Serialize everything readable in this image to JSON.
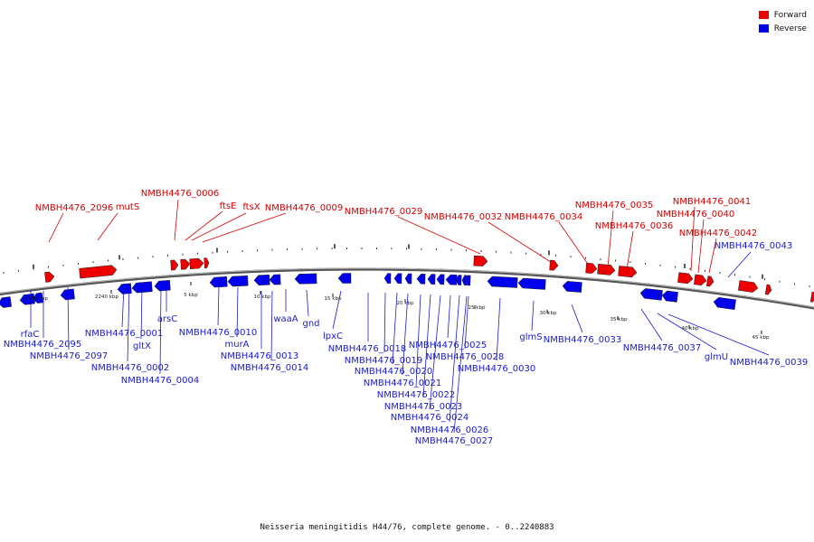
{
  "legend": {
    "forward_label": "Forward",
    "reverse_label": "Reverse",
    "forward_color": "#ee0000",
    "reverse_color": "#0000ee"
  },
  "caption": "Neisseria meningitidis H44/76, complete genome. - 0..2240883",
  "scale_labels": [
    "2235 kbp",
    "2240 kbp",
    "5 kbp",
    "10 kbp",
    "15 kbp",
    "20 kbp",
    "25 kbp",
    "30 kbp",
    "35 kbp",
    "40 kbp",
    "45 kbp"
  ],
  "forward_genes": [
    "NMBH4476_2096",
    "mutS",
    "NMBH4476_0006",
    "ftsE",
    "ftsX",
    "NMBH4476_0009",
    "NMBH4476_0029",
    "NMBH4476_0032",
    "NMBH4476_0034",
    "NMBH4476_0035",
    "NMBH4476_0036",
    "NMBH4476_0041",
    "NMBH4476_0040",
    "NMBH4476_0042"
  ],
  "reverse_genes": [
    "NMBH4476_0043",
    "rfaC",
    "NMBH4476_2095",
    "NMBH4476_2097",
    "NMBH4476_0001",
    "gltX",
    "NMBH4476_0002",
    "NMBH4476_0004",
    "arsC",
    "NMBH4476_0010",
    "murA",
    "NMBH4476_0013",
    "NMBH4476_0014",
    "waaA",
    "gnd",
    "lpxC",
    "NMBH4476_0018",
    "NMBH4476_0019",
    "NMBH4476_0020",
    "NMBH4476_0021",
    "NMBH4476_0022",
    "NMBH4476_0023",
    "NMBH4476_0024",
    "NMBH4476_0025",
    "NMBH4476_0026",
    "NMBH4476_0027",
    "NMBH4476_0028",
    "NMBH4476_0030",
    "glmS",
    "NMBH4476_0033",
    "NMBH4476_0037",
    "glmU",
    "NMBH4476_0039"
  ]
}
